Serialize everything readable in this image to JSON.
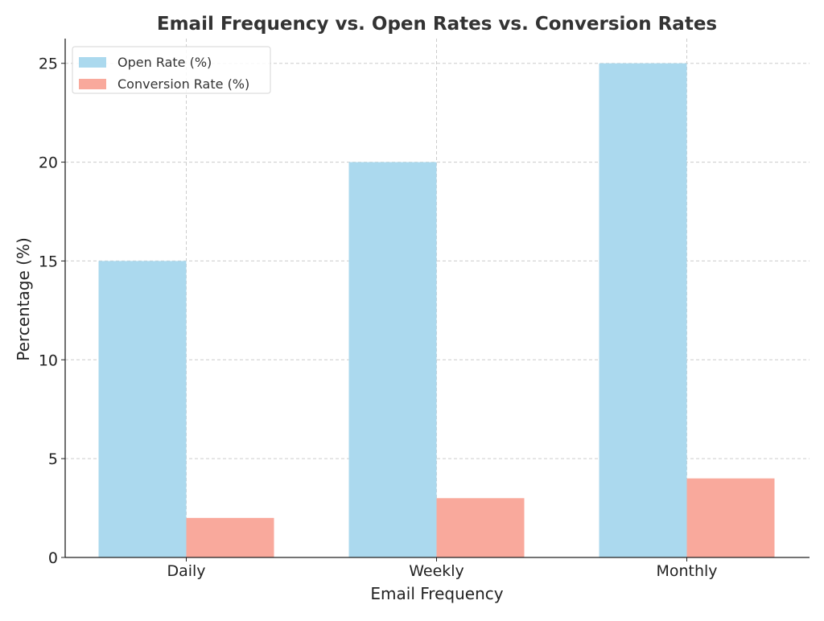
{
  "chart_data": {
    "type": "bar",
    "title": "Email Frequency vs. Open Rates vs. Conversion Rates",
    "xlabel": "Email Frequency",
    "ylabel": "Percentage (%)",
    "categories": [
      "Daily",
      "Weekly",
      "Monthly"
    ],
    "series": [
      {
        "name": "Open Rate (%)",
        "values": [
          15,
          20,
          25
        ],
        "color": "#abd9ee"
      },
      {
        "name": "Conversion Rate (%)",
        "values": [
          2,
          3,
          4
        ],
        "color": "#f9a99c"
      }
    ],
    "ylim": [
      0,
      26.25
    ],
    "yticks": [
      0,
      5,
      10,
      15,
      20,
      25
    ],
    "grid": true,
    "legend_position": "top-left"
  }
}
